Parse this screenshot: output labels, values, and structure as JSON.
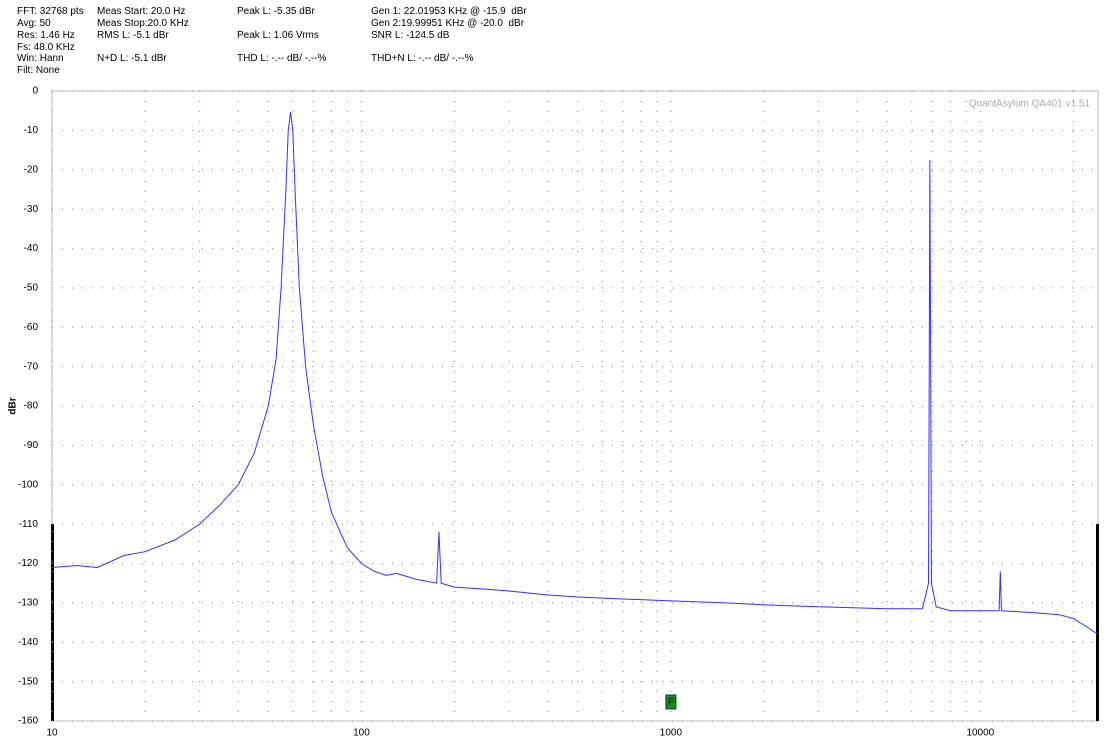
{
  "readouts": [
    "FFT: 32768 pts",
    "Avg: 50",
    "Res: 1.46 Hz",
    "Fs: 48.0 KHz",
    "Win: Hann",
    "Filt: None",
    "Meas Start: 20.0 Hz",
    "Meas Stop:20.0 KHz",
    "RMS L: -5.1 dBr",
    "N+D L: -5.1 dBr",
    "Peak L: -5.35 dBr",
    "Peak L: 1.06 Vrms",
    "THD L: -.-- dB/ -.--%",
    "Gen 1: 22.01953 KHz @ -15.9  dBr",
    "Gen 2:19.99951 KHz @ -20.0  dBr",
    "SNR L: -124.5 dB",
    "THD+N L: -.-- dB/ -.--%"
  ],
  "chart_data": {
    "type": "line",
    "ylabel": "dBr",
    "watermark": "QuantAsylum QA401 v1.51",
    "xscale": "log",
    "grid": true,
    "minor_grid": true,
    "xlim": [
      10,
      24000
    ],
    "xticks": [
      10,
      100,
      1000,
      10000
    ],
    "ylim": [
      -160,
      0
    ],
    "yticks": [
      0,
      -10,
      -20,
      -30,
      -40,
      -50,
      -60,
      -70,
      -80,
      -90,
      -100,
      -110,
      -120,
      -130,
      -140,
      -150,
      -160
    ],
    "marker": {
      "x": 1000,
      "label": "F",
      "color": "#1a8a1a"
    },
    "series": [
      {
        "name": "L",
        "color": "#3333ff",
        "x": [
          10,
          12,
          14,
          15,
          17,
          20,
          25,
          30,
          35,
          40,
          45,
          50,
          53,
          55,
          57,
          58,
          59,
          60,
          61,
          63,
          66,
          70,
          75,
          80,
          90,
          100,
          110,
          120,
          130,
          150,
          175,
          178,
          181,
          200,
          250,
          300,
          400,
          500,
          700,
          1000,
          1500,
          2000,
          3000,
          5000,
          6500,
          6800,
          6870,
          6950,
          7200,
          8000,
          10000,
          11500,
          11600,
          11700,
          15000,
          18000,
          20000,
          22000,
          24000
        ],
        "values": [
          -121,
          -120.5,
          -121,
          -120,
          -118,
          -117,
          -114,
          -110,
          -105,
          -100,
          -92,
          -80,
          -68,
          -50,
          -25,
          -10,
          -5.35,
          -10,
          -25,
          -50,
          -70,
          -85,
          -98,
          -107,
          -116,
          -120,
          -122,
          -123,
          -122.5,
          -124,
          -125,
          -112,
          -125,
          -126,
          -126.5,
          -127,
          -128,
          -128.5,
          -129,
          -129.5,
          -130,
          -130.5,
          -131,
          -131.5,
          -131.5,
          -125,
          -17.5,
          -125,
          -131,
          -132,
          -132,
          -132,
          -122,
          -132,
          -132.5,
          -133,
          -134,
          -136,
          -138
        ]
      }
    ]
  }
}
